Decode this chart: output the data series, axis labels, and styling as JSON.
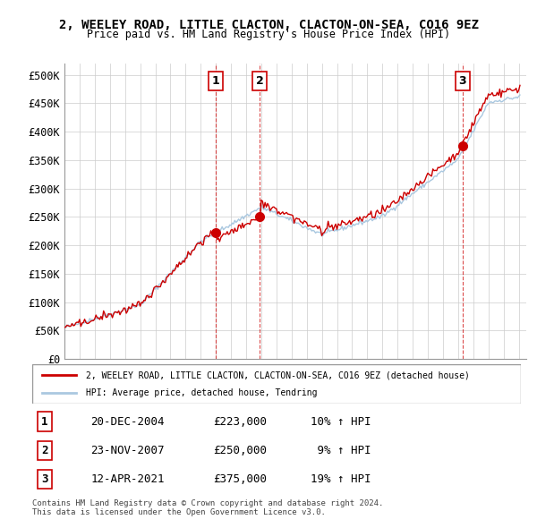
{
  "title1": "2, WEELEY ROAD, LITTLE CLACTON, CLACTON-ON-SEA, CO16 9EZ",
  "title2": "Price paid vs. HM Land Registry's House Price Index (HPI)",
  "ylabel": "",
  "xlim_start": 1995.0,
  "xlim_end": 2025.5,
  "ylim": [
    0,
    520000
  ],
  "yticks": [
    0,
    50000,
    100000,
    150000,
    200000,
    250000,
    300000,
    350000,
    400000,
    450000,
    500000
  ],
  "ytick_labels": [
    "£0",
    "£50K",
    "£100K",
    "£150K",
    "£200K",
    "£250K",
    "£300K",
    "£350K",
    "£400K",
    "£450K",
    "£500K"
  ],
  "sale_dates": [
    2004.97,
    2007.9,
    2021.28
  ],
  "sale_prices": [
    223000,
    250000,
    375000
  ],
  "sale_labels": [
    "1",
    "2",
    "3"
  ],
  "vline_color": "#cc0000",
  "sale_color": "#cc0000",
  "hpi_color": "#aac8e0",
  "property_color": "#cc0000",
  "legend_property": "2, WEELEY ROAD, LITTLE CLACTON, CLACTON-ON-SEA, CO16 9EZ (detached house)",
  "legend_hpi": "HPI: Average price, detached house, Tendring",
  "table_rows": [
    [
      "1",
      "20-DEC-2004",
      "£223,000",
      "10% ↑ HPI"
    ],
    [
      "2",
      "23-NOV-2007",
      "£250,000",
      " 9% ↑ HPI"
    ],
    [
      "3",
      "12-APR-2021",
      "£375,000",
      "19% ↑ HPI"
    ]
  ],
  "footer": "Contains HM Land Registry data © Crown copyright and database right 2024.\nThis data is licensed under the Open Government Licence v3.0.",
  "background_color": "#ffffff",
  "grid_color": "#cccccc"
}
